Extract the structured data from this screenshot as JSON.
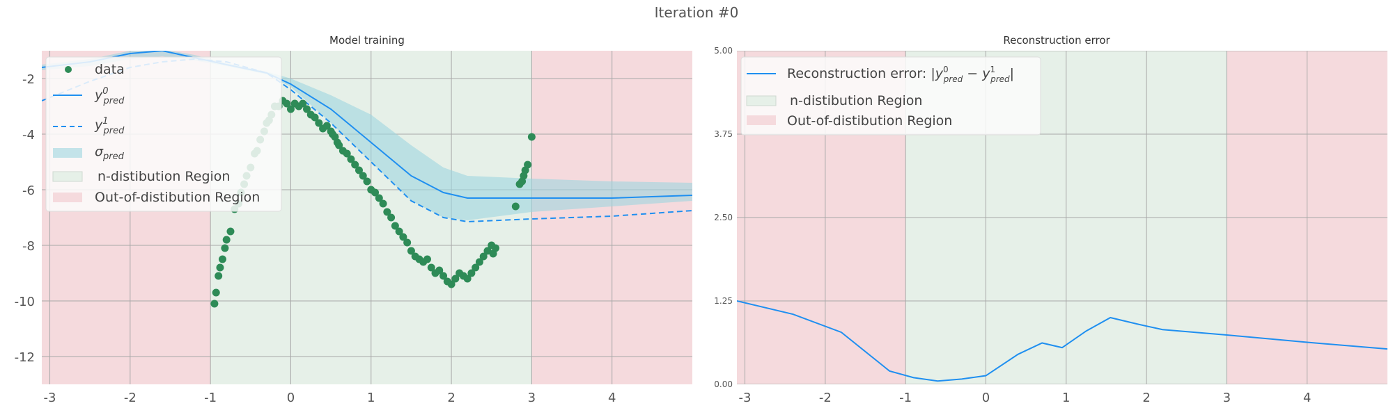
{
  "figure": {
    "suptitle": "Iteration #0"
  },
  "colors": {
    "background": "#ffffff",
    "in_region": "#e6f0e8",
    "out_region": "#f5dadd",
    "grid": "#a8a8a8",
    "pred0": "#1f8ff0",
    "pred1": "#1f8ff0",
    "sigma_fill": "#9fd5e0",
    "data_point": "#2e8b57",
    "title_text": "#333333",
    "tick_text": "#555555"
  },
  "chart_data": [
    {
      "type": "line",
      "title": "Model training",
      "xlabel": "",
      "ylabel": "",
      "xlim": [
        -3.1,
        5.0
      ],
      "ylim": [
        -13,
        -1
      ],
      "grid": true,
      "legend_position": "top-left",
      "x_ticks": [
        -3,
        -2,
        -1,
        0,
        1,
        2,
        3,
        4
      ],
      "y_ticks": [
        -2,
        -4,
        -6,
        -8,
        -10,
        -12
      ],
      "regions": [
        {
          "label": "Out-of-distibution Region",
          "kind": "out",
          "x": [
            -3.1,
            -1
          ]
        },
        {
          "label": "n-distibution Region",
          "kind": "in",
          "x": [
            -1,
            3
          ]
        },
        {
          "label": "Out-of-distibution Region",
          "kind": "out",
          "x": [
            3,
            5.0
          ]
        }
      ],
      "x": [
        -3.1,
        -2.5,
        -2.0,
        -1.6,
        -1.2,
        -0.8,
        -0.3,
        0,
        0.5,
        1.0,
        1.5,
        1.9,
        2.2,
        3.0,
        4.0,
        5.0
      ],
      "series": [
        {
          "name": "y_pred^0",
          "style": "solid",
          "values": [
            -1.6,
            -1.4,
            -1.1,
            -1.0,
            -1.25,
            -1.5,
            -1.8,
            -2.2,
            -3.1,
            -4.3,
            -5.5,
            -6.1,
            -6.3,
            -6.3,
            -6.3,
            -6.2
          ]
        },
        {
          "name": "y_pred^1",
          "style": "dashed",
          "values": [
            -2.8,
            -2.1,
            -1.6,
            -1.4,
            -1.3,
            -1.4,
            -1.8,
            -2.4,
            -3.6,
            -5.0,
            -6.4,
            -7.0,
            -7.15,
            -7.05,
            -6.95,
            -6.75
          ]
        }
      ],
      "band": {
        "name": "σ_pred",
        "lower": [
          -1.7,
          -1.55,
          -1.3,
          -1.2,
          -1.35,
          -1.55,
          -1.85,
          -2.3,
          -3.6,
          -5.0,
          -6.4,
          -7.0,
          -7.1,
          -6.8,
          -6.6,
          -6.4
        ],
        "upper": [
          -1.5,
          -1.3,
          -1.0,
          -0.95,
          -1.15,
          -1.45,
          -1.75,
          -2.0,
          -2.6,
          -3.3,
          -4.4,
          -5.2,
          -5.5,
          -5.6,
          -5.7,
          -5.75
        ]
      },
      "scatter": {
        "name": "data",
        "x": [
          -0.95,
          -0.93,
          -0.9,
          -0.88,
          -0.85,
          -0.82,
          -0.8,
          -0.75,
          -0.7,
          -0.65,
          -0.62,
          -0.58,
          -0.55,
          -0.5,
          -0.45,
          -0.42,
          -0.38,
          -0.33,
          -0.3,
          -0.27,
          -0.24,
          -0.2,
          -0.15,
          -0.1,
          -0.05,
          0.0,
          0.05,
          0.1,
          0.15,
          0.2,
          0.25,
          0.3,
          0.35,
          0.4,
          0.45,
          0.5,
          0.52,
          0.55,
          0.58,
          0.6,
          0.65,
          0.7,
          0.75,
          0.8,
          0.85,
          0.9,
          0.95,
          1.0,
          1.05,
          1.1,
          1.15,
          1.2,
          1.25,
          1.3,
          1.35,
          1.4,
          1.45,
          1.5,
          1.55,
          1.6,
          1.65,
          1.7,
          1.75,
          1.8,
          1.85,
          1.9,
          1.95,
          2.0,
          2.05,
          2.1,
          2.15,
          2.2,
          2.25,
          2.3,
          2.35,
          2.4,
          2.45,
          2.5,
          2.52,
          2.55,
          2.8,
          2.85,
          2.88,
          2.9,
          2.92,
          2.95,
          3.0
        ],
        "y": [
          -10.1,
          -9.7,
          -9.1,
          -8.8,
          -8.5,
          -8.1,
          -7.8,
          -7.5,
          -6.7,
          -6.5,
          -6.1,
          -5.8,
          -5.5,
          -5.2,
          -4.7,
          -4.6,
          -4.2,
          -3.9,
          -3.6,
          -3.5,
          -3.3,
          -3.0,
          -3.0,
          -2.8,
          -2.9,
          -3.1,
          -2.9,
          -3.0,
          -2.9,
          -3.1,
          -3.3,
          -3.4,
          -3.6,
          -3.8,
          -3.7,
          -3.9,
          -4.0,
          -4.1,
          -4.3,
          -4.4,
          -4.6,
          -4.7,
          -4.9,
          -5.1,
          -5.3,
          -5.5,
          -5.7,
          -6.0,
          -6.1,
          -6.3,
          -6.5,
          -6.8,
          -7.0,
          -7.3,
          -7.5,
          -7.7,
          -7.9,
          -8.2,
          -8.4,
          -8.5,
          -8.6,
          -8.5,
          -8.8,
          -9.0,
          -8.9,
          -9.1,
          -9.3,
          -9.4,
          -9.2,
          -9.0,
          -9.1,
          -9.2,
          -9.0,
          -8.8,
          -8.6,
          -8.4,
          -8.2,
          -8.0,
          -8.3,
          -8.1,
          -6.6,
          -5.8,
          -5.7,
          -5.5,
          -5.3,
          -5.1,
          -4.1
        ]
      },
      "legend": [
        "data",
        "y_pred^0",
        "y_pred^1",
        "σ_pred",
        "n-distibution Region",
        "Out-of-distibution Region"
      ]
    },
    {
      "type": "line",
      "title": "Reconstruction error",
      "xlabel": "",
      "ylabel": "",
      "xlim": [
        -3.1,
        5.0
      ],
      "ylim": [
        0,
        5.0
      ],
      "grid": true,
      "legend_position": "top-left",
      "x_ticks": [
        -3,
        -2,
        -1,
        0,
        1,
        2,
        3,
        4
      ],
      "y_ticks": [
        "5.00",
        "3.75",
        "2.50",
        "1.25",
        "0.00"
      ],
      "regions": [
        {
          "label": "Out-of-distibution Region",
          "kind": "out",
          "x": [
            -3.1,
            -1
          ]
        },
        {
          "label": "n-distibution Region",
          "kind": "in",
          "x": [
            -1,
            3
          ]
        },
        {
          "label": "Out-of-distibution Region",
          "kind": "out",
          "x": [
            3,
            5.0
          ]
        }
      ],
      "series": [
        {
          "name": "Reconstruction error",
          "style": "solid",
          "x": [
            -3.1,
            -2.4,
            -1.8,
            -1.2,
            -0.9,
            -0.6,
            -0.3,
            0.0,
            0.4,
            0.7,
            0.95,
            1.25,
            1.55,
            1.9,
            2.2,
            3.0,
            4.0,
            5.0
          ],
          "y": [
            1.25,
            1.05,
            0.78,
            0.2,
            0.1,
            0.05,
            0.08,
            0.13,
            0.45,
            0.62,
            0.55,
            0.8,
            1.0,
            0.9,
            0.82,
            0.74,
            0.63,
            0.53
          ]
        }
      ],
      "legend": [
        "Reconstruction error: |y_pred^0 − y_pred^1|",
        "n-distibution Region",
        "Out-of-distibution Region"
      ]
    }
  ]
}
